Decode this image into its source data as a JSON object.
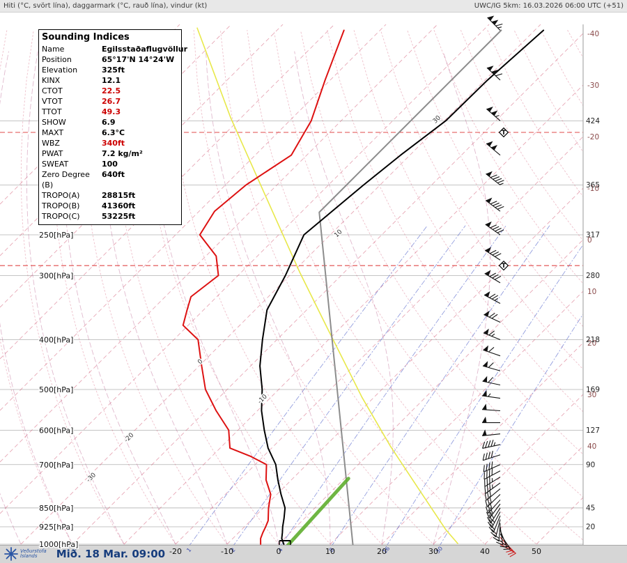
{
  "header": {
    "left": "Hiti (°C, svört lína), daggarmark (°C, rauð lína), vindur (kt)",
    "right": "UWC/IG 5km: 16.03.2026 06:00 UTC (+51)"
  },
  "footer": {
    "logo_title": "Veðurstofa",
    "logo_subtitle": "Íslands",
    "datetime": "Mið. 18 Mar. 09:00"
  },
  "indices": {
    "title": "Sounding Indices",
    "rows": [
      {
        "name": "Name",
        "value": "Egilsstaðaflugvöllur",
        "red": false
      },
      {
        "name": "Position",
        "value": "65°17'N 14°24'W",
        "red": false
      },
      {
        "name": "Elevation",
        "value": "325ft",
        "red": false
      },
      {
        "name": "KINX",
        "value": "12.1",
        "red": false
      },
      {
        "name": "CTOT",
        "value": "22.5",
        "red": true
      },
      {
        "name": "VTOT",
        "value": "26.7",
        "red": true
      },
      {
        "name": "TTOT",
        "value": "49.3",
        "red": true
      },
      {
        "name": "SHOW",
        "value": "6.9",
        "red": false
      },
      {
        "name": "MAXT",
        "value": "6.3°C",
        "red": false
      },
      {
        "name": "WBZ",
        "value": "340ft",
        "red": true
      },
      {
        "name": "PWAT",
        "value": "7.2 kg/m²",
        "red": false
      },
      {
        "name": "SWEAT",
        "value": "100",
        "red": false
      },
      {
        "name": "Zero Degree (B)",
        "value": "640ft",
        "red": false
      },
      {
        "name": "TROPO(A)",
        "value": "28815ft",
        "red": false
      },
      {
        "name": "TROPO(B)",
        "value": "41360ft",
        "red": false
      },
      {
        "name": "TROPO(C)",
        "value": "53225ft",
        "red": false
      }
    ]
  },
  "colors": {
    "value_red": "#cc0000",
    "isotherm": "#d4607a",
    "dry_adiabat": "#d4607a",
    "moist_adiabat": "#b85a8a",
    "mixing": "#5566cc",
    "isobar": "#b0b0b0",
    "trop_line": "#e04848",
    "barb": "#111111",
    "barb_red": "#cc2222",
    "right_temp_label": "#8a4a4a"
  },
  "chart_data": {
    "type": "line",
    "title": "",
    "xlabel": "°C",
    "ylabel": "hPa",
    "temp_range_C": [
      -20,
      50
    ],
    "pressure_range_hPa": [
      100,
      1000
    ],
    "grid": {
      "isotherm_step": 10,
      "isotherm_range": [
        -120,
        50
      ],
      "dry_adiabat_range": [
        -40,
        190
      ],
      "moist_adiabat_range": [
        -60,
        30
      ],
      "grid_pressures": [
        150,
        200,
        250,
        300,
        400,
        500,
        600,
        700,
        850,
        925,
        1000
      ]
    },
    "pressure_ticks": [
      {
        "p": 250,
        "label": "250[hPa]"
      },
      {
        "p": 300,
        "label": "300[hPa]"
      },
      {
        "p": 400,
        "label": "400[hPa]"
      },
      {
        "p": 500,
        "label": "500[hPa]"
      },
      {
        "p": 600,
        "label": "600[hPa]"
      },
      {
        "p": 700,
        "label": "700[hPa]"
      },
      {
        "p": 850,
        "label": "850[hPa]"
      },
      {
        "p": 925,
        "label": "925[hPa]"
      },
      {
        "p": 1000,
        "label": "1000[hPa]"
      }
    ],
    "temp_ticks": [
      -20,
      -10,
      0,
      10,
      20,
      30,
      40,
      50
    ],
    "right_height_labels": [
      {
        "p": 150,
        "label": "424"
      },
      {
        "p": 200,
        "label": "365"
      },
      {
        "p": 250,
        "label": "317"
      },
      {
        "p": 300,
        "label": "280"
      },
      {
        "p": 400,
        "label": "218"
      },
      {
        "p": 500,
        "label": "169"
      },
      {
        "p": 600,
        "label": "127"
      },
      {
        "p": 700,
        "label": "90"
      },
      {
        "p": 850,
        "label": "45"
      },
      {
        "p": 925,
        "label": "20"
      }
    ],
    "tropopause_levels_hPa": [
      158,
      287
    ],
    "mixing_ratios": [
      1,
      2,
      4,
      8,
      16,
      30
    ],
    "inline_labels": [
      {
        "text": "-30",
        "t": -48.8,
        "p": 746
      },
      {
        "text": "-20",
        "t": -49.2,
        "p": 624
      },
      {
        "text": "-10",
        "t": -30.8,
        "p": 525
      },
      {
        "text": "0",
        "t": -50.1,
        "p": 444
      },
      {
        "text": "10",
        "t": -48.2,
        "p": 250
      },
      {
        "text": "30",
        "t": -51.2,
        "p": 150
      }
    ],
    "series": [
      {
        "name": "reference-yellow",
        "color": "#e8e84a",
        "width": 1.6,
        "points": [
          [
            34.6,
            997
          ],
          [
            29.6,
            937
          ],
          [
            16.1,
            777
          ],
          [
            2.6,
            644
          ],
          [
            -12.3,
            518
          ],
          [
            -32.6,
            379
          ],
          [
            -48.8,
            295
          ],
          [
            -70.4,
            209
          ],
          [
            -92.0,
            148
          ],
          [
            -115.9,
            99
          ]
        ]
      },
      {
        "name": "icao-standard-atmosphere",
        "color": "#8c8c8c",
        "width": 2,
        "points": [
          [
            15.0,
            1013
          ],
          [
            -56.5,
            226
          ],
          [
            -56.5,
            100
          ]
        ]
      },
      {
        "name": "parcel-green",
        "color": "#5fae2f",
        "width": 5,
        "points": [
          [
            2.0,
            1005
          ],
          [
            0.8,
            745
          ]
        ]
      },
      {
        "name": "dewpoint",
        "color": "#dd1111",
        "width": 2,
        "points": [
          [
            -3.5,
            1000
          ],
          [
            -4.6,
            975
          ],
          [
            -5.3,
            950
          ],
          [
            -5.9,
            925
          ],
          [
            -6.6,
            900
          ],
          [
            -9.0,
            850
          ],
          [
            -11.2,
            800
          ],
          [
            -14.9,
            750
          ],
          [
            -17.8,
            700
          ],
          [
            -22.4,
            675
          ],
          [
            -28.1,
            650
          ],
          [
            -31.8,
            600
          ],
          [
            -38.0,
            550
          ],
          [
            -44.2,
            500
          ],
          [
            -49.5,
            450
          ],
          [
            -55.3,
            400
          ],
          [
            -61.0,
            375
          ],
          [
            -63.2,
            350
          ],
          [
            -65.0,
            330
          ],
          [
            -63.8,
            300
          ],
          [
            -68.0,
            275
          ],
          [
            -75.3,
            250
          ],
          [
            -77.0,
            225
          ],
          [
            -76.0,
            200
          ],
          [
            -73.0,
            175
          ],
          [
            -75.8,
            150
          ],
          [
            -81.0,
            125
          ],
          [
            -87.0,
            100
          ]
        ]
      },
      {
        "name": "temperature",
        "color": "#000000",
        "width": 2,
        "points": [
          [
            1.0,
            1000
          ],
          [
            -0.5,
            975
          ],
          [
            -1.5,
            950
          ],
          [
            -2.6,
            925
          ],
          [
            -4.0,
            890
          ],
          [
            -5.8,
            850
          ],
          [
            -9.2,
            800
          ],
          [
            -12.6,
            750
          ],
          [
            -16.0,
            700
          ],
          [
            -20.7,
            650
          ],
          [
            -24.9,
            600
          ],
          [
            -29.2,
            550
          ],
          [
            -33.2,
            500
          ],
          [
            -38.2,
            450
          ],
          [
            -42.8,
            400
          ],
          [
            -47.7,
            350
          ],
          [
            -50.8,
            300
          ],
          [
            -55.1,
            250
          ],
          [
            -53.2,
            200
          ],
          [
            -51.8,
            175
          ],
          [
            -49.7,
            150
          ],
          [
            -49.5,
            125
          ],
          [
            -48.3,
            100
          ]
        ]
      }
    ],
    "winds": [
      {
        "p": 1000,
        "dir": 120,
        "spd": 10,
        "red": true
      },
      {
        "p": 985,
        "dir": 128,
        "spd": 12,
        "red": true
      },
      {
        "p": 970,
        "dir": 136,
        "spd": 12,
        "red": true
      },
      {
        "p": 955,
        "dir": 146,
        "spd": 15
      },
      {
        "p": 940,
        "dir": 158,
        "spd": 15
      },
      {
        "p": 925,
        "dir": 172,
        "spd": 18
      },
      {
        "p": 910,
        "dir": 184,
        "spd": 20
      },
      {
        "p": 895,
        "dir": 194,
        "spd": 22
      },
      {
        "p": 880,
        "dir": 202,
        "spd": 22
      },
      {
        "p": 865,
        "dir": 208,
        "spd": 25
      },
      {
        "p": 850,
        "dir": 212,
        "spd": 28
      },
      {
        "p": 835,
        "dir": 217,
        "spd": 28
      },
      {
        "p": 820,
        "dir": 222,
        "spd": 30
      },
      {
        "p": 800,
        "dir": 226,
        "spd": 32
      },
      {
        "p": 780,
        "dir": 230,
        "spd": 32
      },
      {
        "p": 760,
        "dir": 234,
        "spd": 35
      },
      {
        "p": 740,
        "dir": 238,
        "spd": 35
      },
      {
        "p": 720,
        "dir": 242,
        "spd": 38
      },
      {
        "p": 700,
        "dir": 246,
        "spd": 40
      },
      {
        "p": 670,
        "dir": 252,
        "spd": 42
      },
      {
        "p": 640,
        "dir": 258,
        "spd": 45
      },
      {
        "p": 610,
        "dir": 264,
        "spd": 48
      },
      {
        "p": 580,
        "dir": 270,
        "spd": 50
      },
      {
        "p": 550,
        "dir": 274,
        "spd": 52
      },
      {
        "p": 520,
        "dir": 278,
        "spd": 55
      },
      {
        "p": 490,
        "dir": 282,
        "spd": 58
      },
      {
        "p": 460,
        "dir": 286,
        "spd": 60
      },
      {
        "p": 430,
        "dir": 289,
        "spd": 62
      },
      {
        "p": 400,
        "dir": 292,
        "spd": 65
      },
      {
        "p": 370,
        "dir": 295,
        "spd": 70
      },
      {
        "p": 340,
        "dir": 298,
        "spd": 75
      },
      {
        "p": 310,
        "dir": 301,
        "spd": 78
      },
      {
        "p": 280,
        "dir": 303,
        "spd": 82
      },
      {
        "p": 250,
        "dir": 305,
        "spd": 88
      },
      {
        "p": 225,
        "dir": 307,
        "spd": 92
      },
      {
        "p": 200,
        "dir": 308,
        "spd": 96
      },
      {
        "p": 175,
        "dir": 310,
        "spd": 100
      },
      {
        "p": 150,
        "dir": 311,
        "spd": 105
      },
      {
        "p": 125,
        "dir": 313,
        "spd": 110
      },
      {
        "p": 100,
        "dir": 315,
        "spd": 115
      }
    ]
  }
}
